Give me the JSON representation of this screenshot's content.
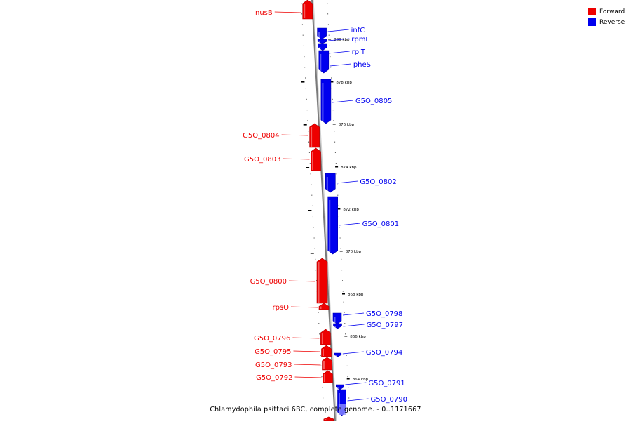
{
  "legend": {
    "forward": {
      "label": "Forward",
      "color": "#ee0000"
    },
    "reverse": {
      "label": "Reverse",
      "color": "#0000ee"
    }
  },
  "caption": "Chlamydophila psittaci 6BC, complete genome. - 0..1171667",
  "ruler_labels": [
    "880 kbp",
    "878 kbp",
    "876 kbp",
    "874 kbp",
    "872 kbp",
    "870 kbp",
    "868 kbp",
    "866 kbp",
    "864 kbp"
  ],
  "forward_genes": [
    "nusB",
    "G5O_0804",
    "G5O_0803",
    "G5O_0800",
    "rpsO",
    "G5O_0796",
    "G5O_0795",
    "G5O_0793",
    "G5O_0792"
  ],
  "reverse_genes": [
    "infC",
    "rpmI",
    "rplT",
    "pheS",
    "G5O_0805",
    "G5O_0802",
    "G5O_0801",
    "G5O_0798",
    "G5O_0797",
    "G5O_0794",
    "G5O_0791",
    "G5O_0790"
  ]
}
